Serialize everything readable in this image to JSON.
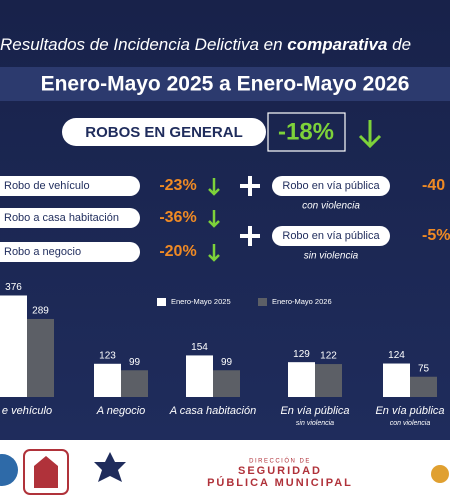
{
  "header": {
    "title_parts": [
      "Resultados de Incidencia Delictiva en ",
      "comparativa",
      " de"
    ],
    "period": "Enero-Mayo 2025 a Enero-Mayo 2026"
  },
  "summary": {
    "label": "ROBOS EN GENERAL",
    "change": "-18%"
  },
  "left_items": [
    {
      "label": "Robo de vehículo",
      "change": "-23%"
    },
    {
      "label": "Robo a casa habitación",
      "change": "-36%"
    },
    {
      "label": "Robo a negocio",
      "change": "-20%"
    }
  ],
  "right_items": [
    {
      "label": "Robo en vía pública",
      "note": "con violencia",
      "change": "-40"
    },
    {
      "label": "Robo en vía pública",
      "note": "sin violencia",
      "change": "-5%"
    }
  ],
  "chart_data": {
    "type": "bar",
    "categories": [
      "e vehículo",
      "A negocio",
      "A casa habitación",
      "En vía pública",
      "En vía pública"
    ],
    "category_notes": [
      null,
      null,
      null,
      "sin violencia",
      "con violencia"
    ],
    "series": [
      {
        "name": "Enero-Mayo 2025",
        "color": "#ffffff",
        "values": [
          376,
          123,
          154,
          129,
          124
        ]
      },
      {
        "name": "Enero-Mayo 2026",
        "color": "#5c5f66",
        "values": [
          289,
          99,
          99,
          122,
          75
        ]
      }
    ]
  },
  "footer": {
    "line1": "DIRECCIÓN DE",
    "line2": "SEGURIDAD",
    "line3": "PÚBLICA MUNICIPAL"
  }
}
